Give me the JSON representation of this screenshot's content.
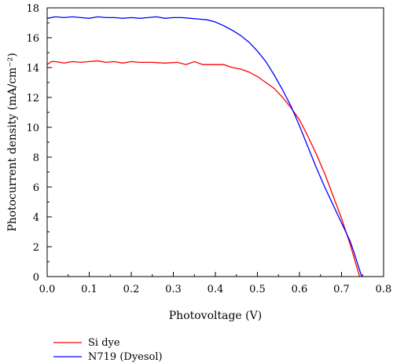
{
  "chart_data": {
    "type": "line",
    "xlabel": "Photovoltage (V)",
    "ylabel": "Photocurrent density (mA/cm⁻²)",
    "xlim": [
      0.0,
      0.8
    ],
    "ylim": [
      0,
      18
    ],
    "xticks": [
      "0.0",
      "0.1",
      "0.2",
      "0.3",
      "0.4",
      "0.5",
      "0.6",
      "0.7",
      "0.8"
    ],
    "yticks": [
      "0",
      "2",
      "4",
      "6",
      "8",
      "10",
      "12",
      "14",
      "16",
      "18"
    ],
    "grid": false,
    "legend_position": "bottom-left",
    "series": [
      {
        "name": "Si dye",
        "color": "#ff0000",
        "points": [
          [
            0.0,
            14.2
          ],
          [
            0.01,
            14.4
          ],
          [
            0.02,
            14.4
          ],
          [
            0.04,
            14.3
          ],
          [
            0.06,
            14.4
          ],
          [
            0.08,
            14.35
          ],
          [
            0.1,
            14.4
          ],
          [
            0.12,
            14.45
          ],
          [
            0.14,
            14.35
          ],
          [
            0.16,
            14.4
          ],
          [
            0.18,
            14.3
          ],
          [
            0.2,
            14.4
          ],
          [
            0.22,
            14.35
          ],
          [
            0.25,
            14.35
          ],
          [
            0.28,
            14.3
          ],
          [
            0.31,
            14.35
          ],
          [
            0.33,
            14.2
          ],
          [
            0.35,
            14.4
          ],
          [
            0.37,
            14.2
          ],
          [
            0.4,
            14.2
          ],
          [
            0.42,
            14.2
          ],
          [
            0.44,
            14.0
          ],
          [
            0.46,
            13.9
          ],
          [
            0.48,
            13.7
          ],
          [
            0.5,
            13.4
          ],
          [
            0.52,
            13.0
          ],
          [
            0.54,
            12.6
          ],
          [
            0.56,
            12.0
          ],
          [
            0.58,
            11.3
          ],
          [
            0.6,
            10.5
          ],
          [
            0.62,
            9.4
          ],
          [
            0.64,
            8.2
          ],
          [
            0.66,
            6.9
          ],
          [
            0.68,
            5.4
          ],
          [
            0.7,
            3.9
          ],
          [
            0.72,
            2.2
          ],
          [
            0.74,
            0.3
          ],
          [
            0.743,
            0.0
          ]
        ]
      },
      {
        "name": "N719 (Dyesol)",
        "color": "#0000ff",
        "points": [
          [
            0.0,
            17.3
          ],
          [
            0.02,
            17.4
          ],
          [
            0.04,
            17.35
          ],
          [
            0.06,
            17.4
          ],
          [
            0.08,
            17.35
          ],
          [
            0.1,
            17.3
          ],
          [
            0.12,
            17.4
          ],
          [
            0.14,
            17.35
          ],
          [
            0.16,
            17.35
          ],
          [
            0.18,
            17.3
          ],
          [
            0.2,
            17.35
          ],
          [
            0.22,
            17.3
          ],
          [
            0.24,
            17.35
          ],
          [
            0.26,
            17.4
          ],
          [
            0.28,
            17.3
          ],
          [
            0.3,
            17.35
          ],
          [
            0.32,
            17.35
          ],
          [
            0.34,
            17.3
          ],
          [
            0.36,
            17.25
          ],
          [
            0.38,
            17.2
          ],
          [
            0.4,
            17.05
          ],
          [
            0.42,
            16.8
          ],
          [
            0.44,
            16.5
          ],
          [
            0.46,
            16.15
          ],
          [
            0.48,
            15.7
          ],
          [
            0.5,
            15.1
          ],
          [
            0.52,
            14.4
          ],
          [
            0.54,
            13.5
          ],
          [
            0.56,
            12.5
          ],
          [
            0.58,
            11.4
          ],
          [
            0.6,
            10.1
          ],
          [
            0.62,
            8.7
          ],
          [
            0.64,
            7.3
          ],
          [
            0.66,
            6.0
          ],
          [
            0.68,
            4.8
          ],
          [
            0.7,
            3.6
          ],
          [
            0.72,
            2.4
          ],
          [
            0.73,
            1.6
          ],
          [
            0.74,
            0.7
          ],
          [
            0.748,
            0.0
          ]
        ]
      }
    ]
  }
}
